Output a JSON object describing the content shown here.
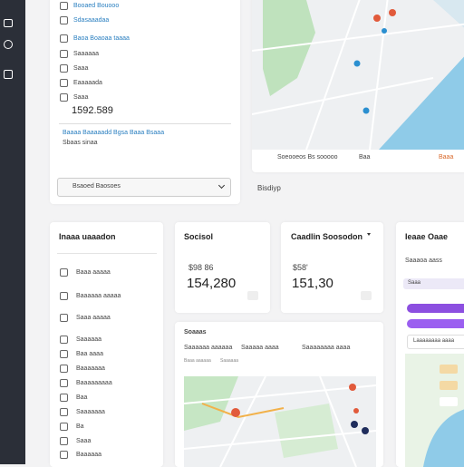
{
  "top_list": {
    "items": [
      "Booaed Bouooo",
      "Sdasaaadaa",
      "Baoa Boaoaa taaaa",
      "Saaaaaa",
      "Saaa",
      "Eaaaaada",
      "Saaa"
    ],
    "total": "1592.589",
    "link": "Baaaa Baaaaadd Bgsa Baaa Bsaaa",
    "note": "Sbaas sinaa",
    "dropdown": "Bsaoed Baosoes"
  },
  "map_top": {
    "footer": "Soeooeos Bs sooooo",
    "footer_mid": "Baa",
    "footer_right": "Baaa"
  },
  "section_label": "Bisdiyp",
  "left_card": {
    "title": "Inaaa uaaadon",
    "items": [
      "Baaa aaaaa",
      "Baaaaaa aaaaa",
      "Saaa aaaaa",
      "Saaaaaa",
      "Baa aaaa",
      "Baaaaaaa",
      "Baaaaaaaaa",
      "Baa",
      "Saaaaaaa",
      "Ba",
      "Saaa",
      "Baaaaaa"
    ]
  },
  "stat1": {
    "title": "Socisol",
    "amount": "$98 86",
    "value": "154,280"
  },
  "stat2": {
    "title": "Caadlin Soosodon",
    "amount": "$58'",
    "value": "151,30"
  },
  "right_card": {
    "title": "Ieaae Oaae",
    "subtitle": "Saaaoa aass",
    "tag": "Saaa",
    "note": "Laaaaaaaa aaaa"
  },
  "map_card": {
    "title": "Soaaas",
    "tabs": [
      "Saaaaaa aaaaaa",
      "Saaaaa aaaa",
      "Saaaaaaaa aaaa"
    ],
    "subtabs": [
      "Baaa aaaaaa",
      "Saaaaaa"
    ]
  }
}
